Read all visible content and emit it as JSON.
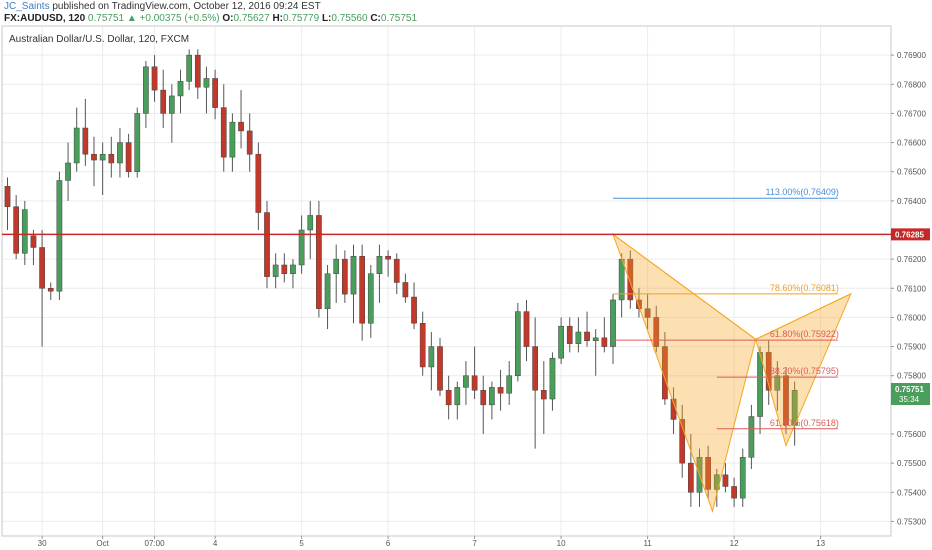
{
  "header": {
    "username": "JC_Saints",
    "published_text": "published on TradingView.com, October 12, 2016 09:24 EST",
    "symbol_interval": "FX:AUDUSD, 120",
    "last": "0.75751",
    "change": "+0.00375 (+0.5%)",
    "o_label": "O:",
    "o": "0.75627",
    "h_label": "H:",
    "h": "0.75779",
    "l_label": "L:",
    "l": "0.75560",
    "c_label": "C:",
    "c": "0.75751"
  },
  "colors": {
    "up": "#4a9e5c",
    "down": "#c0392b",
    "pattern": "#f5a623",
    "hline": "#c62828",
    "fib_blue": "#4a90d9",
    "fib_orange": "#f0a020",
    "fib_red": "#e05a5a"
  },
  "chart_data": {
    "type": "candlestick",
    "title": "Australian Dollar/U.S. Dollar, 120, FXCM",
    "ylim": [
      0.7525,
      0.77
    ],
    "y_ticks": [
      "0.76900",
      "0.76800",
      "0.76700",
      "0.76600",
      "0.76500",
      "0.76400",
      "0.76200",
      "0.76100",
      "0.76000",
      "0.75900",
      "0.75800",
      "0.75600",
      "0.75500",
      "0.75400",
      "0.75300"
    ],
    "x_ticks": [
      {
        "label": "30",
        "index": 4
      },
      {
        "label": "Oct",
        "index": 11
      },
      {
        "label": "07:00",
        "index": 17
      },
      {
        "label": "4",
        "index": 24
      },
      {
        "label": "5",
        "index": 34
      },
      {
        "label": "6",
        "index": 44
      },
      {
        "label": "7",
        "index": 54
      },
      {
        "label": "10",
        "index": 64
      },
      {
        "label": "11",
        "index": 74
      },
      {
        "label": "12",
        "index": 84
      },
      {
        "label": "13",
        "index": 94
      }
    ],
    "candles": [
      [
        0.7645,
        0.7648,
        0.763,
        0.7638
      ],
      [
        0.7638,
        0.7642,
        0.762,
        0.7622
      ],
      [
        0.7622,
        0.764,
        0.7618,
        0.7637
      ],
      [
        0.7628,
        0.763,
        0.7618,
        0.7624
      ],
      [
        0.7624,
        0.763,
        0.759,
        0.761
      ],
      [
        0.761,
        0.7612,
        0.7606,
        0.7609
      ],
      [
        0.7609,
        0.765,
        0.7606,
        0.7647
      ],
      [
        0.7647,
        0.766,
        0.764,
        0.7653
      ],
      [
        0.7653,
        0.7672,
        0.765,
        0.7665
      ],
      [
        0.7665,
        0.7675,
        0.7652,
        0.7656
      ],
      [
        0.7656,
        0.7662,
        0.7645,
        0.7654
      ],
      [
        0.7654,
        0.766,
        0.7642,
        0.7656
      ],
      [
        0.7656,
        0.7662,
        0.7648,
        0.7653
      ],
      [
        0.7653,
        0.7665,
        0.7648,
        0.766
      ],
      [
        0.766,
        0.7663,
        0.7648,
        0.765
      ],
      [
        0.765,
        0.7672,
        0.7648,
        0.767
      ],
      [
        0.767,
        0.7688,
        0.7665,
        0.7686
      ],
      [
        0.7686,
        0.769,
        0.7674,
        0.7678
      ],
      [
        0.7678,
        0.7685,
        0.7665,
        0.767
      ],
      [
        0.767,
        0.768,
        0.766,
        0.7676
      ],
      [
        0.7676,
        0.7685,
        0.767,
        0.7681
      ],
      [
        0.7681,
        0.7692,
        0.7678,
        0.769
      ],
      [
        0.769,
        0.7692,
        0.7675,
        0.7679
      ],
      [
        0.7679,
        0.7686,
        0.767,
        0.7682
      ],
      [
        0.7682,
        0.7685,
        0.7668,
        0.7672
      ],
      [
        0.7672,
        0.768,
        0.765,
        0.7655
      ],
      [
        0.7655,
        0.767,
        0.765,
        0.7667
      ],
      [
        0.7667,
        0.7678,
        0.7658,
        0.7664
      ],
      [
        0.7664,
        0.767,
        0.765,
        0.7656
      ],
      [
        0.7656,
        0.766,
        0.763,
        0.7636
      ],
      [
        0.7636,
        0.764,
        0.761,
        0.7614
      ],
      [
        0.7614,
        0.7622,
        0.761,
        0.7618
      ],
      [
        0.7618,
        0.7622,
        0.7612,
        0.7615
      ],
      [
        0.7615,
        0.762,
        0.761,
        0.7618
      ],
      [
        0.7618,
        0.7635,
        0.7615,
        0.763
      ],
      [
        0.763,
        0.764,
        0.762,
        0.7635
      ],
      [
        0.7635,
        0.764,
        0.76,
        0.7603
      ],
      [
        0.7603,
        0.7618,
        0.7596,
        0.7615
      ],
      [
        0.7615,
        0.7625,
        0.7605,
        0.762
      ],
      [
        0.762,
        0.7623,
        0.7605,
        0.7608
      ],
      [
        0.7608,
        0.7625,
        0.7598,
        0.7621
      ],
      [
        0.7621,
        0.7625,
        0.7592,
        0.7598
      ],
      [
        0.7598,
        0.7618,
        0.7593,
        0.7615
      ],
      [
        0.7615,
        0.7625,
        0.7605,
        0.7621
      ],
      [
        0.7621,
        0.7623,
        0.7614,
        0.762
      ],
      [
        0.762,
        0.7622,
        0.7608,
        0.7612
      ],
      [
        0.7612,
        0.7615,
        0.7605,
        0.7607
      ],
      [
        0.7607,
        0.7612,
        0.7596,
        0.7598
      ],
      [
        0.7598,
        0.7602,
        0.758,
        0.7583
      ],
      [
        0.7583,
        0.7595,
        0.7575,
        0.759
      ],
      [
        0.759,
        0.7593,
        0.7573,
        0.7575
      ],
      [
        0.7575,
        0.758,
        0.7565,
        0.757
      ],
      [
        0.757,
        0.7578,
        0.7565,
        0.7576
      ],
      [
        0.7576,
        0.7585,
        0.757,
        0.758
      ],
      [
        0.758,
        0.759,
        0.7572,
        0.7575
      ],
      [
        0.7575,
        0.758,
        0.756,
        0.757
      ],
      [
        0.757,
        0.7578,
        0.7565,
        0.7576
      ],
      [
        0.7576,
        0.7582,
        0.7568,
        0.7574
      ],
      [
        0.7574,
        0.7585,
        0.757,
        0.758
      ],
      [
        0.758,
        0.7605,
        0.7578,
        0.7602
      ],
      [
        0.7602,
        0.7606,
        0.7585,
        0.759
      ],
      [
        0.759,
        0.76,
        0.7555,
        0.7575
      ],
      [
        0.7575,
        0.7585,
        0.756,
        0.7572
      ],
      [
        0.7572,
        0.7588,
        0.7568,
        0.7586
      ],
      [
        0.7586,
        0.76,
        0.7584,
        0.7597
      ],
      [
        0.7597,
        0.76,
        0.7588,
        0.7591
      ],
      [
        0.7591,
        0.76,
        0.7588,
        0.7595
      ],
      [
        0.7595,
        0.7602,
        0.759,
        0.7592
      ],
      [
        0.7592,
        0.7596,
        0.758,
        0.7593
      ],
      [
        0.7593,
        0.76,
        0.7588,
        0.759
      ],
      [
        0.759,
        0.7608,
        0.7584,
        0.7606
      ],
      [
        0.7606,
        0.7622,
        0.76,
        0.762
      ],
      [
        0.762,
        0.7623,
        0.7603,
        0.7606
      ],
      [
        0.7606,
        0.761,
        0.76,
        0.7603
      ],
      [
        0.7603,
        0.7608,
        0.7596,
        0.76
      ],
      [
        0.76,
        0.7604,
        0.7588,
        0.759
      ],
      [
        0.759,
        0.7595,
        0.757,
        0.7572
      ],
      [
        0.7572,
        0.7576,
        0.756,
        0.7565
      ],
      [
        0.7565,
        0.757,
        0.7545,
        0.755
      ],
      [
        0.755,
        0.756,
        0.7535,
        0.754
      ],
      [
        0.754,
        0.7555,
        0.7535,
        0.7552
      ],
      [
        0.7552,
        0.7556,
        0.7538,
        0.7541
      ],
      [
        0.7541,
        0.7548,
        0.7535,
        0.7546
      ],
      [
        0.7546,
        0.755,
        0.754,
        0.7542
      ],
      [
        0.7542,
        0.7545,
        0.7535,
        0.7538
      ],
      [
        0.7538,
        0.7555,
        0.7535,
        0.7552
      ],
      [
        0.7552,
        0.757,
        0.7548,
        0.7566
      ],
      [
        0.7566,
        0.759,
        0.756,
        0.7588
      ],
      [
        0.7588,
        0.7592,
        0.757,
        0.7575
      ],
      [
        0.7575,
        0.7585,
        0.7568,
        0.758
      ],
      [
        0.758,
        0.7583,
        0.756,
        0.7563
      ],
      [
        0.7563,
        0.7578,
        0.7556,
        0.7575
      ]
    ],
    "horizontal_line": {
      "value": 0.76285,
      "label": "0.76285"
    },
    "price_badge": {
      "value": 0.75751,
      "label": "0.75751",
      "timer": "35:34"
    },
    "fib_levels": [
      {
        "label": "113.00%(0.76409)",
        "value": 0.76409,
        "x_from": 70,
        "x_to": 96,
        "color": "#4a90d9"
      },
      {
        "label": "78.60%(0.76081)",
        "value": 0.76081,
        "x_from": 70,
        "x_to": 96,
        "color": "#f0a020"
      },
      {
        "label": "61.80%(0.75922)",
        "value": 0.75922,
        "x_from": 70,
        "x_to": 96,
        "color": "#e05a5a"
      },
      {
        "label": "38.20%(0.75795)",
        "value": 0.75795,
        "x_from": 82,
        "x_to": 96,
        "color": "#e05a5a"
      },
      {
        "label": "61.80%(0.75618)",
        "value": 0.75618,
        "x_from": 82,
        "x_to": 96,
        "color": "#e05a5a"
      }
    ],
    "pattern_points": [
      {
        "x": 70,
        "y": 0.76285
      },
      {
        "x": 81.5,
        "y": 0.75335
      },
      {
        "x": 86.5,
        "y": 0.75925
      },
      {
        "x": 90,
        "y": 0.7556
      },
      {
        "x": 97.5,
        "y": 0.76081
      }
    ]
  }
}
